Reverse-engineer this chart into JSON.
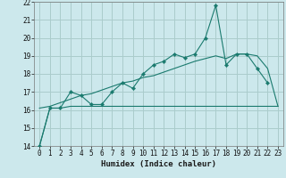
{
  "xlabel": "Humidex (Indice chaleur)",
  "bg_color": "#cce8ec",
  "grid_color": "#aacccc",
  "line_color": "#1a7a6e",
  "x": [
    0,
    1,
    2,
    3,
    4,
    5,
    6,
    7,
    8,
    9,
    10,
    11,
    12,
    13,
    14,
    15,
    16,
    17,
    18,
    19,
    20,
    21,
    22,
    23
  ],
  "y_jagged": [
    14,
    16.1,
    16.1,
    17.0,
    16.8,
    16.3,
    16.3,
    17.0,
    17.5,
    17.2,
    18.0,
    18.5,
    18.7,
    19.1,
    18.9,
    19.1,
    20.0,
    21.8,
    18.5,
    19.1,
    19.1,
    18.3,
    17.5,
    null
  ],
  "y_spike": [
    null,
    null,
    null,
    null,
    null,
    null,
    null,
    null,
    null,
    null,
    null,
    null,
    null,
    null,
    null,
    null,
    20.0,
    21.8,
    18.5,
    null,
    null,
    null,
    null,
    null
  ],
  "y_flat": [
    14,
    16.1,
    16.1,
    16.2,
    16.2,
    16.2,
    16.2,
    16.2,
    16.2,
    16.2,
    16.2,
    16.2,
    16.2,
    16.2,
    16.2,
    16.2,
    16.2,
    16.2,
    16.2,
    16.2,
    16.2,
    16.2,
    16.2,
    16.2
  ],
  "y_linear": [
    16.1,
    16.2,
    16.4,
    16.6,
    16.8,
    16.9,
    17.1,
    17.3,
    17.5,
    17.6,
    17.8,
    17.9,
    18.1,
    18.3,
    18.5,
    18.7,
    18.85,
    19.0,
    18.85,
    19.1,
    19.1,
    19.0,
    18.3,
    16.2
  ],
  "ylim": [
    14,
    22
  ],
  "xlim": [
    -0.5,
    23.5
  ],
  "yticks": [
    14,
    15,
    16,
    17,
    18,
    19,
    20,
    21,
    22
  ],
  "xticks": [
    0,
    1,
    2,
    3,
    4,
    5,
    6,
    7,
    8,
    9,
    10,
    11,
    12,
    13,
    14,
    15,
    16,
    17,
    18,
    19,
    20,
    21,
    22,
    23
  ]
}
